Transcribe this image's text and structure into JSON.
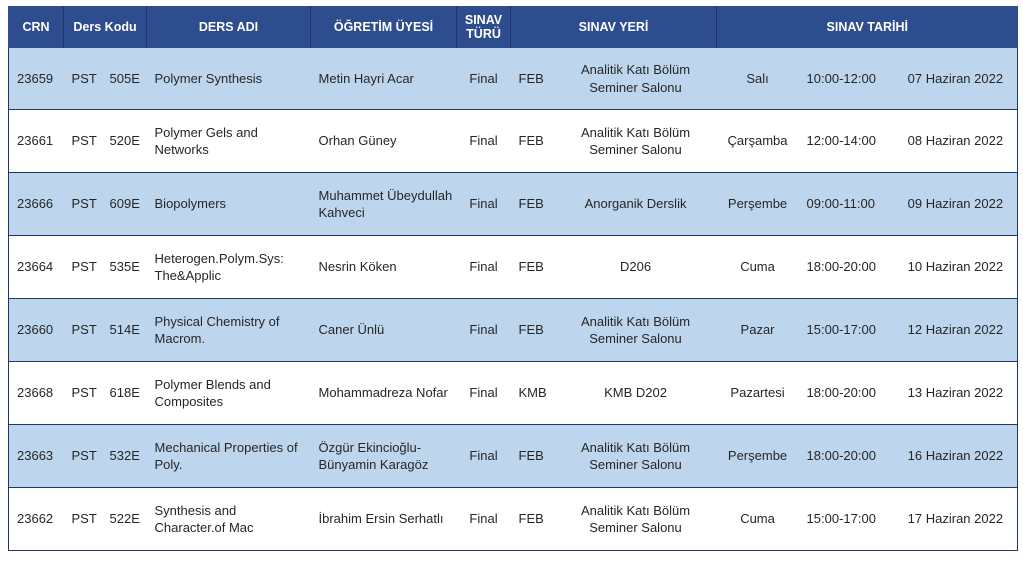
{
  "headers": {
    "crn": "CRN",
    "ders_kodu": "Ders Kodu",
    "ders_adi": "DERS ADI",
    "ogretim_uyesi": "ÖĞRETİM ÜYESİ",
    "sinav_turu": "SINAV TÜRÜ",
    "sinav_yeri": "SINAV YERİ",
    "sinav_tarihi": "SINAV TARİHİ"
  },
  "rows": [
    {
      "crn": "23659",
      "prefix": "PST",
      "code": "505E",
      "course": "Polymer Synthesis",
      "instructor": "Metin Hayri Acar",
      "type": "Final",
      "building": "FEB",
      "room": "Analitik Katı Bölüm Seminer Salonu",
      "day": "Salı",
      "time": "10:00-12:00",
      "date": "07 Haziran 2022"
    },
    {
      "crn": "23661",
      "prefix": "PST",
      "code": "520E",
      "course": "Polymer Gels and Networks",
      "instructor": "Orhan Güney",
      "type": "Final",
      "building": "FEB",
      "room": "Analitik Katı Bölüm Seminer Salonu",
      "day": "Çarşamba",
      "time": "12:00-14:00",
      "date": "08 Haziran 2022"
    },
    {
      "crn": "23666",
      "prefix": "PST",
      "code": "609E",
      "course": "Biopolymers",
      "instructor": "Muhammet Übeydullah Kahveci",
      "type": "Final",
      "building": "FEB",
      "room": "Anorganik Derslik",
      "day": "Perşembe",
      "time": "09:00-11:00",
      "date": "09 Haziran 2022"
    },
    {
      "crn": "23664",
      "prefix": "PST",
      "code": "535E",
      "course": "Heterogen.Polym.Sys: The&Applic",
      "instructor": "Nesrin Köken",
      "type": "Final",
      "building": "FEB",
      "room": "D206",
      "day": "Cuma",
      "time": "18:00-20:00",
      "date": "10 Haziran 2022"
    },
    {
      "crn": "23660",
      "prefix": "PST",
      "code": "514E",
      "course": "Physical Chemistry of Macrom.",
      "instructor": "Caner Ünlü",
      "type": "Final",
      "building": "FEB",
      "room": "Analitik Katı Bölüm Seminer Salonu",
      "day": "Pazar",
      "time": "15:00-17:00",
      "date": "12 Haziran 2022"
    },
    {
      "crn": "23668",
      "prefix": "PST",
      "code": "618E",
      "course": "Polymer Blends and Composites",
      "instructor": "Mohammadreza Nofar",
      "type": "Final",
      "building": "KMB",
      "room": "KMB D202",
      "day": "Pazartesi",
      "time": "18:00-20:00",
      "date": "13 Haziran 2022"
    },
    {
      "crn": "23663",
      "prefix": "PST",
      "code": "532E",
      "course": "Mechanical Properties of Poly.",
      "instructor": "Özgür Ekincioğlu-Bünyamin Karagöz",
      "type": "Final",
      "building": "FEB",
      "room": "Analitik Katı Bölüm Seminer Salonu",
      "day": "Perşembe",
      "time": "18:00-20:00",
      "date": "16 Haziran 2022"
    },
    {
      "crn": "23662",
      "prefix": "PST",
      "code": "522E",
      "course": "Synthesis and Character.of Mac",
      "instructor": "İbrahim Ersin Serhatlı",
      "type": "Final",
      "building": "FEB",
      "room": "Analitik Katı Bölüm Seminer Salonu",
      "day": "Cuma",
      "time": "15:00-17:00",
      "date": "17 Haziran 2022"
    }
  ],
  "colors": {
    "header_bg": "#2e4d8f",
    "header_text": "#ffffff",
    "row_alt_bg": "#bdd6ee",
    "row_bg": "#ffffff"
  }
}
